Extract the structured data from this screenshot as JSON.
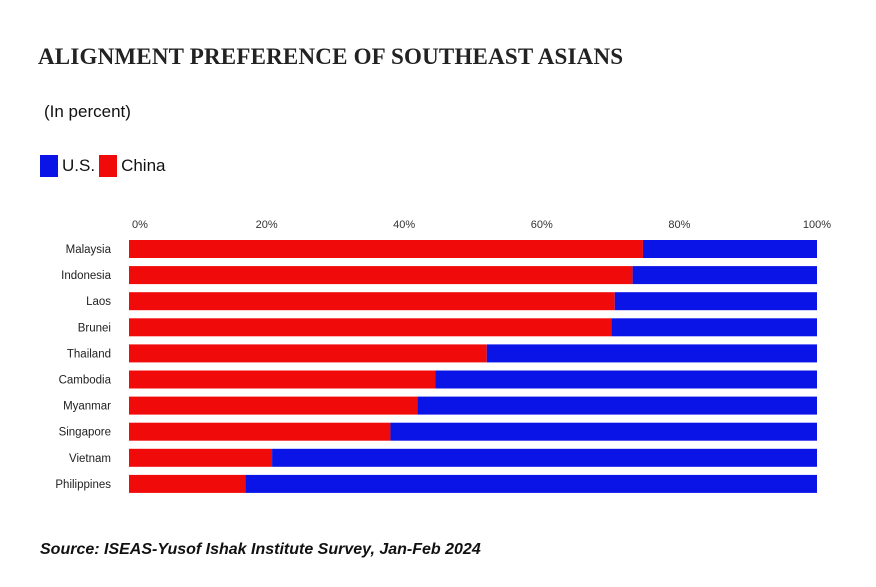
{
  "title": "ALIGNMENT PREFERENCE OF SOUTHEAST ASIANS",
  "subtitle": "(In percent)",
  "legend": [
    {
      "label": "U.S.",
      "color": "#0A14E6"
    },
    {
      "label": "China",
      "color": "#F00A0A"
    }
  ],
  "source": "Source: ISEAS-Yusof Ishak Institute Survey, Jan-Feb 2024",
  "chart_data": {
    "type": "bar",
    "orientation": "horizontal",
    "stacked": true,
    "title": "ALIGNMENT PREFERENCE OF SOUTHEAST ASIANS",
    "subtitle": "(In percent)",
    "xlim": [
      0,
      100
    ],
    "x_ticks": [
      "0%",
      "20%",
      "40%",
      "60%",
      "80%",
      "100%"
    ],
    "x_tick_values": [
      0,
      20,
      40,
      60,
      80,
      100
    ],
    "x_axis_position": "top",
    "grid": false,
    "legend_position": "top-left",
    "categories": [
      "Malaysia",
      "Indonesia",
      "Laos",
      "Brunei",
      "Thailand",
      "Cambodia",
      "Myanmar",
      "Singapore",
      "Vietnam",
      "Philippines"
    ],
    "series": [
      {
        "name": "China",
        "color": "#F00A0A",
        "values": [
          74.7,
          73.2,
          70.6,
          70.1,
          52.0,
          44.5,
          41.9,
          38.0,
          20.8,
          16.9
        ]
      },
      {
        "name": "U.S.",
        "color": "#0A14E6",
        "values": [
          25.3,
          26.8,
          29.4,
          29.9,
          48.0,
          55.5,
          58.1,
          62.0,
          79.2,
          83.1
        ]
      }
    ]
  }
}
